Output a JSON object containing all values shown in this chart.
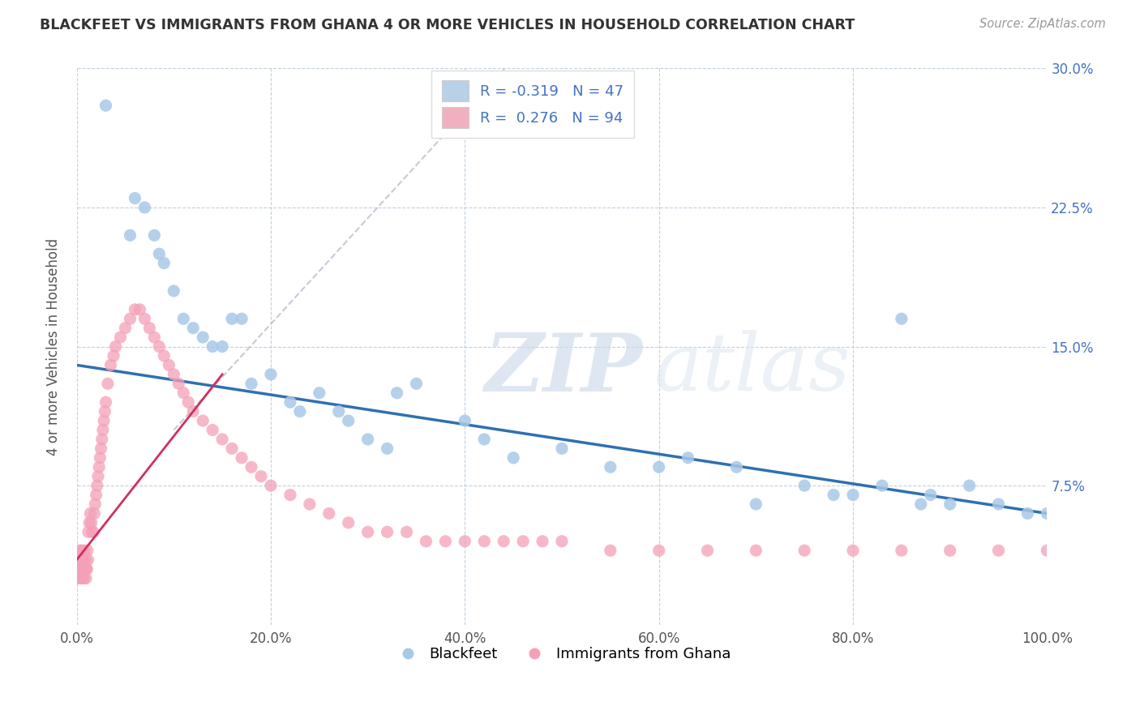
{
  "title": "BLACKFEET VS IMMIGRANTS FROM GHANA 4 OR MORE VEHICLES IN HOUSEHOLD CORRELATION CHART",
  "source_text": "Source: ZipAtlas.com",
  "ylabel": "4 or more Vehicles in Household",
  "xlim": [
    0.0,
    100.0
  ],
  "ylim": [
    0.0,
    30.0
  ],
  "watermark_zip": "ZIP",
  "watermark_atlas": "atlas",
  "blue_color": "#a8c8e8",
  "pink_color": "#f4a0b8",
  "blue_line_color": "#3070b0",
  "pink_line_color": "#d03060",
  "background_color": "#ffffff",
  "grid_color": "#c0d0e0",
  "blackfeet_x": [
    3.0,
    5.5,
    6.0,
    7.0,
    8.0,
    8.5,
    9.0,
    10.0,
    11.0,
    12.0,
    13.0,
    14.0,
    15.0,
    16.0,
    17.0,
    18.0,
    20.0,
    23.0,
    25.0,
    28.0,
    30.0,
    33.0,
    35.0,
    40.0,
    42.0,
    50.0,
    55.0,
    63.0,
    68.0,
    75.0,
    80.0,
    83.0,
    87.0,
    90.0,
    92.0,
    95.0,
    98.0,
    100.0,
    45.0,
    60.0,
    70.0,
    78.0,
    85.0,
    88.0,
    22.0,
    27.0,
    32.0
  ],
  "blackfeet_y": [
    28.0,
    21.0,
    23.0,
    22.5,
    21.0,
    20.0,
    19.5,
    18.0,
    16.5,
    16.0,
    15.5,
    15.0,
    15.0,
    16.5,
    16.5,
    13.0,
    13.5,
    11.5,
    12.5,
    11.0,
    10.0,
    12.5,
    13.0,
    11.0,
    10.0,
    9.5,
    8.5,
    9.0,
    8.5,
    7.5,
    7.0,
    7.5,
    6.5,
    6.5,
    7.5,
    6.5,
    6.0,
    6.0,
    9.0,
    8.5,
    6.5,
    7.0,
    16.5,
    7.0,
    12.0,
    11.5,
    9.5
  ],
  "ghana_x": [
    0.2,
    0.3,
    0.4,
    0.5,
    0.6,
    0.7,
    0.8,
    0.9,
    1.0,
    1.1,
    1.2,
    1.3,
    1.4,
    1.5,
    1.6,
    1.7,
    1.8,
    1.9,
    2.0,
    2.1,
    2.2,
    2.3,
    2.4,
    2.5,
    2.6,
    2.7,
    2.8,
    2.9,
    3.0,
    3.2,
    3.5,
    3.8,
    4.0,
    4.5,
    5.0,
    5.5,
    6.0,
    6.5,
    7.0,
    7.5,
    8.0,
    8.5,
    9.0,
    9.5,
    10.0,
    10.5,
    11.0,
    11.5,
    12.0,
    13.0,
    14.0,
    15.0,
    16.0,
    17.0,
    18.0,
    19.0,
    20.0,
    22.0,
    24.0,
    26.0,
    28.0,
    30.0,
    32.0,
    34.0,
    36.0,
    38.0,
    40.0,
    42.0,
    44.0,
    46.0,
    48.0,
    50.0,
    55.0,
    60.0,
    65.0,
    70.0,
    75.0,
    80.0,
    85.0,
    90.0,
    95.0,
    100.0,
    0.15,
    0.25,
    0.35,
    0.45,
    0.55,
    0.65,
    0.75,
    0.85,
    0.95,
    1.05,
    1.15
  ],
  "ghana_y": [
    3.5,
    4.0,
    3.5,
    4.0,
    3.0,
    3.5,
    4.0,
    3.5,
    3.0,
    4.0,
    5.0,
    5.5,
    6.0,
    5.5,
    5.0,
    5.0,
    6.0,
    6.5,
    7.0,
    7.5,
    8.0,
    8.5,
    9.0,
    9.5,
    10.0,
    10.5,
    11.0,
    11.5,
    12.0,
    13.0,
    14.0,
    14.5,
    15.0,
    15.5,
    16.0,
    16.5,
    17.0,
    17.0,
    16.5,
    16.0,
    15.5,
    15.0,
    14.5,
    14.0,
    13.5,
    13.0,
    12.5,
    12.0,
    11.5,
    11.0,
    10.5,
    10.0,
    9.5,
    9.0,
    8.5,
    8.0,
    7.5,
    7.0,
    6.5,
    6.0,
    5.5,
    5.0,
    5.0,
    5.0,
    4.5,
    4.5,
    4.5,
    4.5,
    4.5,
    4.5,
    4.5,
    4.5,
    4.0,
    4.0,
    4.0,
    4.0,
    4.0,
    4.0,
    4.0,
    4.0,
    4.0,
    4.0,
    2.5,
    3.0,
    2.5,
    3.0,
    2.5,
    3.0,
    2.5,
    3.0,
    2.5,
    3.0,
    3.5
  ]
}
